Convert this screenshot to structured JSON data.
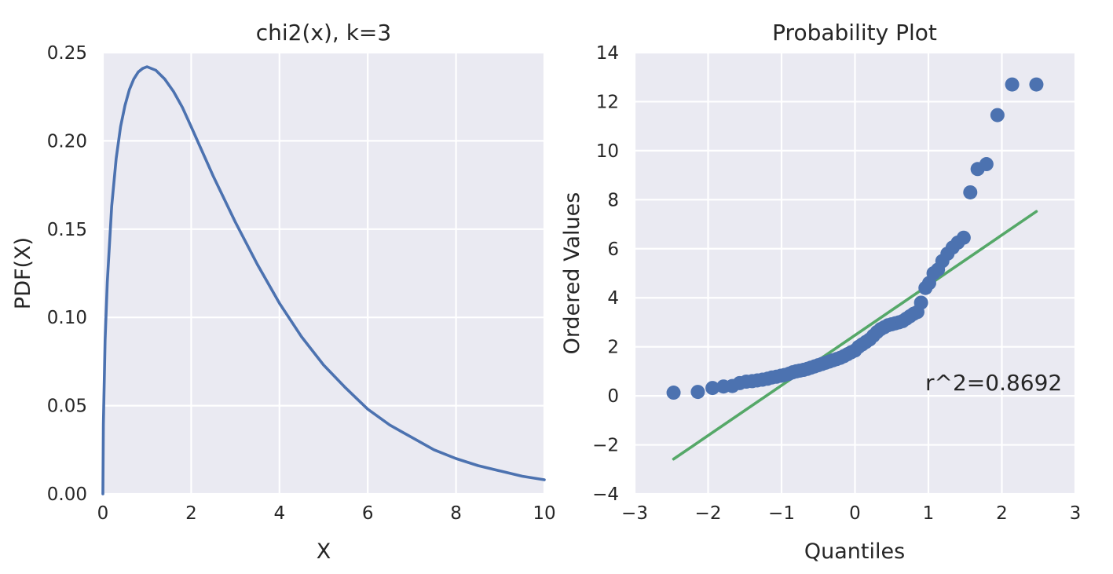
{
  "chart_data": [
    {
      "type": "line",
      "title": "chi2(x), k=3",
      "xlabel": "X",
      "ylabel": "PDF(X)",
      "xlim": [
        0,
        10
      ],
      "ylim": [
        0.0,
        0.25
      ],
      "x_ticks": [
        "0",
        "2",
        "4",
        "6",
        "8",
        "10"
      ],
      "y_ticks": [
        "0.00",
        "0.05",
        "0.10",
        "0.15",
        "0.20",
        "0.25"
      ],
      "grid": true,
      "series": [
        {
          "color": "#4C72B0",
          "x": [
            0,
            0.01,
            0.05,
            0.1,
            0.2,
            0.3,
            0.4,
            0.5,
            0.6,
            0.7,
            0.8,
            0.9,
            1.0,
            1.2,
            1.4,
            1.6,
            1.8,
            2.0,
            2.5,
            3.0,
            3.5,
            4.0,
            4.5,
            5.0,
            5.5,
            6.0,
            6.5,
            7.0,
            7.5,
            8.0,
            8.5,
            9.0,
            9.5,
            10.0
          ],
          "y": [
            0,
            0.0395,
            0.087,
            0.12,
            0.163,
            0.19,
            0.208,
            0.22,
            0.229,
            0.235,
            0.239,
            0.241,
            0.242,
            0.24,
            0.235,
            0.228,
            0.219,
            0.208,
            0.18,
            0.154,
            0.13,
            0.108,
            0.089,
            0.073,
            0.06,
            0.048,
            0.039,
            0.032,
            0.025,
            0.02,
            0.016,
            0.013,
            0.01,
            0.008
          ]
        }
      ]
    },
    {
      "type": "scatter",
      "title": "Probability Plot",
      "xlabel": "Quantiles",
      "ylabel": "Ordered Values",
      "xlim": [
        -3,
        3
      ],
      "ylim": [
        -4,
        14
      ],
      "x_ticks": [
        "−3",
        "−2",
        "−1",
        "0",
        "1",
        "2",
        "3"
      ],
      "y_ticks": [
        "−4",
        "−2",
        "0",
        "2",
        "4",
        "6",
        "8",
        "10",
        "12",
        "14"
      ],
      "grid": true,
      "annotation": "r^2=0.8692",
      "points": {
        "color": "#4C72B0",
        "x": [
          -2.47,
          -2.14,
          -1.94,
          -1.79,
          -1.67,
          -1.57,
          -1.48,
          -1.4,
          -1.33,
          -1.26,
          -1.19,
          -1.13,
          -1.07,
          -1.01,
          -0.96,
          -0.9,
          -0.85,
          -0.8,
          -0.75,
          -0.7,
          -0.65,
          -0.6,
          -0.55,
          -0.5,
          -0.45,
          -0.4,
          -0.35,
          -0.3,
          -0.25,
          -0.2,
          -0.15,
          -0.1,
          -0.05,
          0.0,
          0.05,
          0.1,
          0.15,
          0.2,
          0.25,
          0.3,
          0.35,
          0.4,
          0.45,
          0.5,
          0.55,
          0.6,
          0.65,
          0.7,
          0.75,
          0.8,
          0.85,
          0.9,
          0.96,
          1.01,
          1.07,
          1.13,
          1.19,
          1.26,
          1.33,
          1.4,
          1.48,
          1.57,
          1.67,
          1.79,
          1.94,
          2.14,
          2.47
        ],
        "y": [
          0.13,
          0.16,
          0.32,
          0.38,
          0.4,
          0.52,
          0.58,
          0.6,
          0.63,
          0.66,
          0.7,
          0.75,
          0.78,
          0.82,
          0.85,
          0.9,
          0.96,
          1.0,
          1.03,
          1.06,
          1.1,
          1.15,
          1.2,
          1.25,
          1.3,
          1.35,
          1.4,
          1.45,
          1.5,
          1.55,
          1.62,
          1.7,
          1.78,
          1.85,
          2.0,
          2.1,
          2.2,
          2.3,
          2.45,
          2.6,
          2.72,
          2.8,
          2.88,
          2.92,
          2.96,
          3.0,
          3.05,
          3.15,
          3.25,
          3.35,
          3.42,
          3.8,
          4.4,
          4.6,
          5.0,
          5.15,
          5.5,
          5.8,
          6.05,
          6.25,
          6.45,
          8.3,
          9.25,
          9.45,
          11.45,
          12.7,
          12.7
        ]
      },
      "fit_line": {
        "color": "#55A868",
        "x": [
          -2.47,
          2.47
        ],
        "y": [
          -2.58,
          7.52
        ]
      }
    }
  ]
}
